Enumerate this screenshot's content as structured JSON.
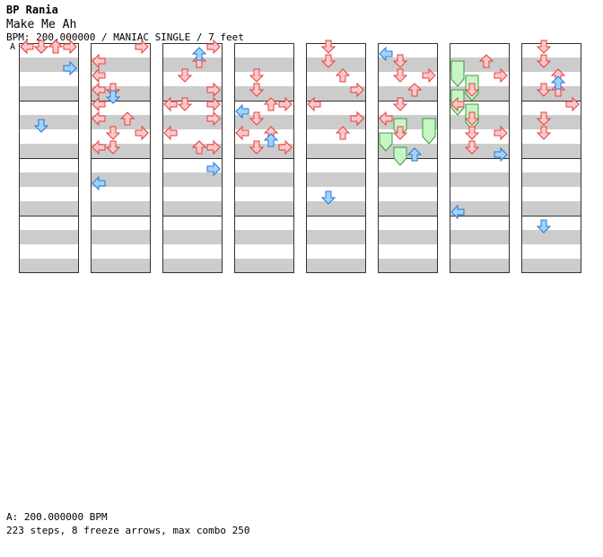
{
  "header": {
    "title": "BP Rania",
    "song": "Make Me Ah",
    "info": "BPM: 200.000000 / MANIAC SINGLE / 7 feet",
    "marker": "A"
  },
  "footer": {
    "bpm_line": "A: 200.000000 BPM",
    "stats_line": "223 steps, 8 freeze arrows, max combo 250"
  },
  "colors": {
    "step": "#ffc8c8",
    "step_edge": "#e04040",
    "quarter": "#9fd4ff",
    "quarter_edge": "#2a76d0",
    "freeze": "#c8f5c8",
    "freeze_edge": "#3a9a3a",
    "band": "#cccccc",
    "border": "#333333"
  },
  "chart_data": {
    "type": "step-chart",
    "columns": 8,
    "lanes": [
      "left",
      "down",
      "up",
      "right"
    ],
    "measures_per_column": 4,
    "rows_per_measure": 8,
    "notes": [
      [
        1,
        2,
        2,
        0
      ],
      [
        1,
        3,
        3,
        0
      ],
      [
        1,
        2,
        2,
        0
      ],
      [
        1,
        2,
        0,
        0
      ],
      [
        1,
        2,
        3,
        0
      ],
      [
        1,
        2,
        2,
        0
      ],
      [
        1,
        3,
        2,
        0
      ],
      [
        1,
        0,
        3,
        0
      ],
      [
        1,
        2,
        3,
        0
      ],
      [
        1,
        0,
        3,
        0
      ],
      [
        1,
        1,
        3,
        0
      ],
      [
        1,
        2,
        4,
        0
      ],
      [
        1,
        2,
        4,
        0
      ],
      [
        1,
        0,
        5,
        0
      ],
      [
        2,
        0,
        0,
        1
      ],
      [
        2,
        0,
        0,
        2
      ],
      [
        2,
        0,
        0,
        3
      ],
      [
        2,
        0,
        0,
        4
      ],
      [
        2,
        0,
        0,
        5
      ],
      [
        2,
        3,
        0,
        6
      ],
      [
        2,
        0,
        0,
        7
      ],
      [
        2,
        0,
        1,
        7
      ],
      [
        2,
        1,
        0,
        6
      ],
      [
        2,
        2,
        0,
        5
      ],
      [
        2,
        3,
        0,
        6
      ],
      [
        2,
        0,
        0,
        4
      ],
      [
        2,
        1,
        0,
        3
      ],
      [
        2,
        0,
        0,
        2
      ],
      [
        2,
        3,
        0,
        0
      ],
      [
        3,
        0,
        2,
        1
      ],
      [
        3,
        0,
        1,
        2
      ],
      [
        3,
        0,
        3,
        3
      ],
      [
        3,
        0,
        0,
        4
      ],
      [
        3,
        0,
        1,
        4
      ],
      [
        3,
        1,
        2,
        4
      ],
      [
        3,
        2,
        1,
        5
      ],
      [
        3,
        0,
        0,
        6
      ],
      [
        3,
        0,
        2,
        7
      ],
      [
        3,
        0,
        3,
        7
      ],
      [
        3,
        2,
        0,
        7
      ],
      [
        3,
        3,
        0,
        0
      ],
      [
        4,
        1,
        0,
        2
      ],
      [
        4,
        0,
        1,
        3
      ],
      [
        4,
        2,
        0,
        4
      ],
      [
        4,
        3,
        0,
        4
      ],
      [
        4,
        1,
        0,
        5
      ],
      [
        4,
        0,
        0,
        6
      ],
      [
        4,
        0,
        2,
        6
      ],
      [
        4,
        3,
        0,
        7
      ],
      [
        4,
        0,
        1,
        7
      ],
      [
        5,
        1,
        0,
        0
      ],
      [
        5,
        0,
        1,
        1
      ],
      [
        5,
        0,
        2,
        2
      ],
      [
        5,
        0,
        3,
        3
      ],
      [
        5,
        0,
        0,
        4
      ],
      [
        5,
        1,
        2,
        5
      ],
      [
        5,
        0,
        3,
        5
      ],
      [
        5,
        2,
        0,
        6
      ],
      [
        6,
        0,
        1,
        1
      ],
      [
        6,
        1,
        0,
        2
      ],
      [
        6,
        0,
        3,
        2
      ],
      [
        6,
        2,
        0,
        3
      ],
      [
        6,
        0,
        1,
        4
      ],
      [
        6,
        0,
        0,
        5
      ],
      [
        6,
        1,
        0,
        6
      ],
      [
        7,
        0,
        2,
        1
      ],
      [
        7,
        0,
        3,
        2
      ],
      [
        7,
        1,
        0,
        3
      ],
      [
        7,
        0,
        0,
        4
      ],
      [
        7,
        0,
        1,
        5
      ],
      [
        7,
        3,
        2,
        6
      ],
      [
        7,
        0,
        3,
        6
      ],
      [
        7,
        0,
        1,
        7
      ],
      [
        8,
        2,
        3,
        0
      ],
      [
        8,
        0,
        1,
        1
      ],
      [
        8,
        2,
        0,
        2
      ],
      [
        8,
        1,
        0,
        3
      ],
      [
        8,
        0,
        2,
        3
      ],
      [
        8,
        3,
        0,
        4
      ],
      [
        8,
        0,
        1,
        5
      ],
      [
        8,
        2,
        3,
        6
      ],
      [
        9,
        1,
        0,
        1
      ],
      [
        9,
        0,
        1,
        2
      ],
      [
        9,
        3,
        0,
        3
      ],
      [
        9,
        0,
        0,
        4
      ],
      [
        9,
        0,
        2,
        5
      ],
      [
        9,
        1,
        0,
        6
      ],
      [
        9,
        2,
        1,
        7
      ],
      [
        9,
        0,
        0,
        7
      ]
    ],
    "quarter_notes": [
      [
        0,
        1,
        5
      ],
      [
        0,
        3,
        1
      ],
      [
        1,
        1,
        3
      ],
      [
        1,
        0,
        9
      ],
      [
        2,
        2,
        0
      ],
      [
        2,
        3,
        8
      ],
      [
        3,
        0,
        4
      ],
      [
        3,
        2,
        6
      ],
      [
        4,
        1,
        10
      ],
      [
        5,
        0,
        0
      ],
      [
        5,
        2,
        7
      ],
      [
        6,
        0,
        11
      ],
      [
        6,
        3,
        7
      ],
      [
        7,
        1,
        12
      ],
      [
        7,
        2,
        2
      ]
    ],
    "freezes": [
      [
        4,
        1,
        10,
        12
      ],
      [
        4,
        0,
        12,
        14
      ],
      [
        4,
        1,
        14,
        16
      ],
      [
        4,
        3,
        10,
        13
      ],
      [
        5,
        0,
        2,
        5
      ],
      [
        5,
        1,
        4,
        7
      ],
      [
        5,
        0,
        6,
        9
      ],
      [
        5,
        1,
        8,
        11
      ]
    ]
  }
}
